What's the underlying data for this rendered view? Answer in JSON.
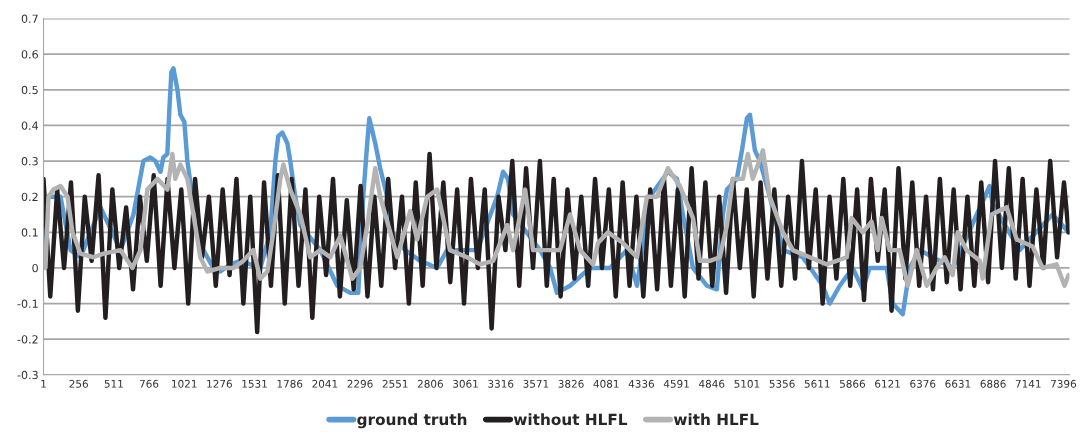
{
  "chart_data": {
    "type": "line",
    "xlim": [
      1,
      7440
    ],
    "xticks": [
      1,
      256,
      511,
      766,
      1021,
      1276,
      1531,
      1786,
      2041,
      2296,
      2551,
      2806,
      3061,
      3316,
      3571,
      3826,
      4081,
      4336,
      4591,
      4846,
      5101,
      5356,
      5611,
      5866,
      6121,
      6376,
      6631,
      6886,
      7141,
      7396
    ],
    "ylim": [
      -0.3,
      0.7
    ],
    "yticks": [
      {
        "value": -0.3,
        "label": "-0.3"
      },
      {
        "value": -0.2,
        "label": "-0.2"
      },
      {
        "value": -0.1,
        "label": "-0.1"
      },
      0,
      0.1,
      0.2,
      0.3,
      0.4,
      0.5,
      0.6,
      0.7
    ],
    "grid": "y",
    "legend": "bottom",
    "marker": "none",
    "line_style": "solid",
    "series": [
      {
        "name": "ground truth",
        "color": "#5b9bd5",
        "x": [
          1,
          30,
          124,
          197,
          269,
          414,
          559,
          653,
          725,
          776,
          812,
          849,
          870,
          899,
          914,
          928,
          943,
          972,
          993,
          1022,
          1044,
          1080,
          1117,
          1160,
          1232,
          1283,
          1356,
          1428,
          1573,
          1645,
          1682,
          1703,
          1732,
          1769,
          1790,
          1826,
          1863,
          2008,
          2131,
          2225,
          2283,
          2319,
          2348,
          2363,
          2406,
          2442,
          2493,
          2529,
          2623,
          2732,
          2855,
          2927,
          3145,
          3290,
          3333,
          3369,
          3406,
          3601,
          3674,
          3724,
          3819,
          3963,
          4108,
          4231,
          4304,
          4398,
          4528,
          4594,
          4637,
          4710,
          4811,
          4883,
          4927,
          4956,
          5028,
          5065,
          5101,
          5123,
          5159,
          5195,
          5267,
          5362,
          5506,
          5651,
          5701,
          5774,
          5868,
          5941,
          5991,
          6114,
          6158,
          6231,
          6282,
          6354,
          6593,
          6861,
          6883,
          7078,
          7317,
          7433
        ],
        "values": [
          0.0,
          0.2,
          0.2,
          0.05,
          0.03,
          0.17,
          0.05,
          0.15,
          0.3,
          0.31,
          0.3,
          0.27,
          0.31,
          0.32,
          0.45,
          0.55,
          0.56,
          0.5,
          0.43,
          0.41,
          0.3,
          0.2,
          0.1,
          0.05,
          0.0,
          -0.01,
          0.01,
          0.02,
          0.0,
          0.1,
          0.3,
          0.37,
          0.38,
          0.35,
          0.3,
          0.2,
          0.12,
          0.05,
          -0.05,
          -0.07,
          -0.07,
          0.2,
          0.35,
          0.42,
          0.35,
          0.28,
          0.2,
          0.1,
          0.05,
          0.02,
          0.0,
          0.05,
          0.05,
          0.2,
          0.27,
          0.25,
          0.15,
          0.05,
          0.0,
          -0.07,
          -0.05,
          0.0,
          0.0,
          0.05,
          -0.05,
          0.2,
          0.27,
          0.25,
          0.15,
          0.0,
          -0.05,
          -0.06,
          0.15,
          0.22,
          0.25,
          0.33,
          0.42,
          0.43,
          0.33,
          0.3,
          0.2,
          0.05,
          0.03,
          -0.05,
          -0.1,
          -0.05,
          0.0,
          -0.06,
          0.0,
          0.0,
          -0.1,
          -0.13,
          0.0,
          0.05,
          0.0,
          0.23,
          0.18,
          0.05,
          0.15,
          0.1
        ]
      },
      {
        "name": "without HLFL",
        "color": "#231f20",
        "x": [
          1,
          50,
          100,
          150,
          200,
          250,
          300,
          350,
          400,
          450,
          500,
          550,
          600,
          650,
          700,
          750,
          800,
          850,
          900,
          950,
          1000,
          1050,
          1100,
          1150,
          1200,
          1250,
          1300,
          1350,
          1400,
          1450,
          1500,
          1550,
          1600,
          1650,
          1700,
          1750,
          1800,
          1850,
          1900,
          1950,
          2000,
          2050,
          2100,
          2150,
          2200,
          2250,
          2300,
          2350,
          2400,
          2450,
          2500,
          2550,
          2600,
          2650,
          2700,
          2750,
          2800,
          2850,
          2900,
          2950,
          3000,
          3050,
          3100,
          3150,
          3200,
          3250,
          3300,
          3350,
          3400,
          3450,
          3500,
          3550,
          3600,
          3650,
          3700,
          3750,
          3800,
          3850,
          3900,
          3950,
          4000,
          4050,
          4100,
          4150,
          4200,
          4250,
          4300,
          4350,
          4400,
          4450,
          4500,
          4550,
          4600,
          4650,
          4700,
          4750,
          4800,
          4850,
          4900,
          4950,
          5000,
          5050,
          5100,
          5150,
          5200,
          5250,
          5300,
          5350,
          5400,
          5450,
          5500,
          5550,
          5600,
          5650,
          5700,
          5750,
          5800,
          5850,
          5900,
          5950,
          6000,
          6050,
          6100,
          6150,
          6200,
          6250,
          6300,
          6350,
          6400,
          6450,
          6500,
          6550,
          6600,
          6650,
          6700,
          6750,
          6800,
          6850,
          6900,
          6950,
          7000,
          7050,
          7100,
          7150,
          7200,
          7250,
          7300,
          7350,
          7400,
          7433
        ],
        "values": [
          0.25,
          -0.08,
          0.22,
          0.0,
          0.24,
          -0.12,
          0.2,
          0.02,
          0.26,
          -0.14,
          0.22,
          0.0,
          0.17,
          -0.06,
          0.2,
          0.02,
          0.26,
          -0.05,
          0.25,
          0.0,
          0.22,
          -0.1,
          0.25,
          0.03,
          0.2,
          -0.05,
          0.22,
          -0.02,
          0.25,
          -0.1,
          0.2,
          -0.18,
          0.24,
          -0.05,
          0.26,
          -0.1,
          0.25,
          -0.05,
          0.22,
          -0.14,
          0.2,
          -0.02,
          0.25,
          -0.08,
          0.19,
          -0.06,
          0.23,
          -0.08,
          0.2,
          -0.05,
          0.25,
          0.0,
          0.2,
          -0.1,
          0.24,
          -0.05,
          0.32,
          0.0,
          0.24,
          -0.04,
          0.22,
          -0.1,
          0.25,
          0.0,
          0.22,
          -0.17,
          0.2,
          0.05,
          0.3,
          -0.05,
          0.28,
          0.0,
          0.3,
          -0.05,
          0.25,
          -0.08,
          0.22,
          -0.03,
          0.2,
          -0.05,
          0.25,
          0.0,
          0.22,
          -0.08,
          0.24,
          -0.05,
          0.2,
          -0.08,
          0.22,
          -0.06,
          0.25,
          -0.05,
          0.22,
          -0.08,
          0.28,
          -0.03,
          0.24,
          -0.05,
          0.2,
          -0.07,
          0.25,
          0.0,
          0.22,
          -0.08,
          0.24,
          -0.03,
          0.22,
          -0.05,
          0.2,
          -0.03,
          0.3,
          0.0,
          0.22,
          -0.1,
          0.2,
          -0.03,
          0.25,
          -0.05,
          0.22,
          -0.09,
          0.25,
          0.02,
          0.22,
          -0.12,
          0.28,
          -0.03,
          0.24,
          -0.05,
          0.2,
          -0.06,
          0.25,
          -0.04,
          0.22,
          -0.06,
          0.2,
          -0.05,
          0.24,
          -0.04,
          0.3,
          0.0,
          0.28,
          -0.03,
          0.25,
          -0.05,
          0.22,
          0.0,
          0.3,
          0.03,
          0.24,
          0.1
        ]
      },
      {
        "name": "with HLFL",
        "color": "#b3b3b3",
        "x": [
          15,
          37,
          73,
          124,
          175,
          211,
          269,
          363,
          436,
          559,
          646,
          704,
          754,
          827,
          899,
          935,
          957,
          993,
          1044,
          1088,
          1138,
          1189,
          1283,
          1377,
          1450,
          1522,
          1573,
          1624,
          1667,
          1718,
          1740,
          1790,
          1863,
          1935,
          2008,
          2080,
          2153,
          2240,
          2297,
          2348,
          2406,
          2442,
          2515,
          2566,
          2660,
          2710,
          2783,
          2855,
          2948,
          3072,
          3167,
          3261,
          3363,
          3406,
          3493,
          3551,
          3652,
          3746,
          3819,
          3891,
          3986,
          4021,
          4094,
          4202,
          4304,
          4376,
          4449,
          4528,
          4615,
          4710,
          4760,
          4833,
          4905,
          4956,
          4999,
          5072,
          5108,
          5144,
          5217,
          5267,
          5362,
          5434,
          5557,
          5680,
          5825,
          5861,
          5941,
          6005,
          6049,
          6078,
          6136,
          6209,
          6267,
          6332,
          6405,
          6477,
          6535,
          6593,
          6629,
          6694,
          6789,
          6810,
          6875,
          6984,
          7057,
          7173,
          7245,
          7346,
          7404,
          7433
        ],
        "values": [
          0.0,
          0.2,
          0.22,
          0.23,
          0.2,
          0.1,
          0.04,
          0.03,
          0.04,
          0.05,
          0.0,
          0.05,
          0.22,
          0.25,
          0.22,
          0.32,
          0.25,
          0.29,
          0.25,
          0.15,
          0.03,
          -0.01,
          0.0,
          0.0,
          0.02,
          0.05,
          -0.03,
          -0.01,
          0.1,
          0.25,
          0.29,
          0.22,
          0.15,
          0.03,
          0.05,
          0.03,
          0.09,
          -0.03,
          0.0,
          0.12,
          0.28,
          0.2,
          0.1,
          0.03,
          0.16,
          0.08,
          0.2,
          0.22,
          0.05,
          0.03,
          0.01,
          0.02,
          0.12,
          0.05,
          0.22,
          0.05,
          0.05,
          0.05,
          0.15,
          0.05,
          0.01,
          0.07,
          0.1,
          0.07,
          0.03,
          0.2,
          0.2,
          0.28,
          0.23,
          0.14,
          0.02,
          0.02,
          0.03,
          0.12,
          0.25,
          0.25,
          0.32,
          0.25,
          0.33,
          0.2,
          0.1,
          0.05,
          0.03,
          0.01,
          0.03,
          0.14,
          0.1,
          0.13,
          0.05,
          0.14,
          0.05,
          0.05,
          -0.05,
          0.05,
          -0.05,
          0.0,
          0.03,
          -0.02,
          0.1,
          0.05,
          0.02,
          -0.03,
          0.15,
          0.17,
          0.08,
          0.06,
          0.0,
          0.01,
          -0.05,
          -0.02
        ]
      }
    ]
  }
}
